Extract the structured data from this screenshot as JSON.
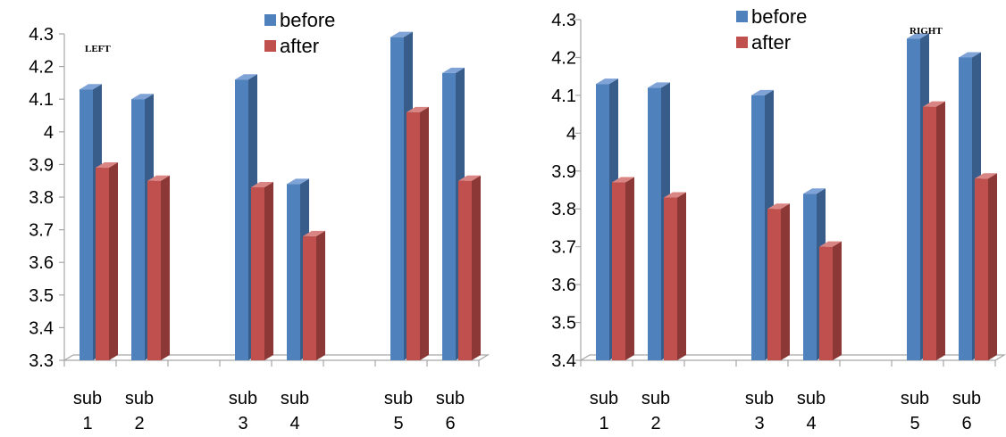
{
  "chart_data": [
    {
      "type": "bar",
      "title": "LEFT",
      "categories": [
        "sub 1",
        "sub 2",
        "sub 3",
        "sub 4",
        "sub 5",
        "sub 6"
      ],
      "category_lines": [
        [
          "sub",
          "1"
        ],
        [
          "sub",
          "2"
        ],
        [
          "sub",
          "3"
        ],
        [
          "sub",
          "4"
        ],
        [
          "sub",
          "5"
        ],
        [
          "sub",
          "6"
        ]
      ],
      "series": [
        {
          "name": "before",
          "values": [
            4.13,
            4.1,
            4.16,
            3.84,
            4.29,
            4.18
          ]
        },
        {
          "name": "after",
          "values": [
            3.89,
            3.85,
            3.83,
            3.68,
            4.06,
            3.85
          ]
        }
      ],
      "ylim": [
        3.3,
        4.3
      ],
      "yticks": [
        "3.3",
        "3.4",
        "3.5",
        "3.6",
        "3.7",
        "3.8",
        "3.9",
        "4",
        "4.1",
        "4.2",
        "4.3"
      ],
      "legend_position": "top",
      "grid": false,
      "style": "3d-bar"
    },
    {
      "type": "bar",
      "title": "RIGHT",
      "categories": [
        "sub 1",
        "sub 2",
        "sub 3",
        "sub 4",
        "sub 5",
        "sub 6"
      ],
      "category_lines": [
        [
          "sub",
          "1"
        ],
        [
          "sub",
          "2"
        ],
        [
          "sub",
          "3"
        ],
        [
          "sub",
          "4"
        ],
        [
          "sub",
          "5"
        ],
        [
          "sub",
          "6"
        ]
      ],
      "series": [
        {
          "name": "before",
          "values": [
            4.13,
            4.12,
            4.1,
            3.84,
            4.25,
            4.2
          ]
        },
        {
          "name": "after",
          "values": [
            3.87,
            3.83,
            3.8,
            3.7,
            4.07,
            3.88
          ]
        }
      ],
      "ylim": [
        3.4,
        4.3
      ],
      "yticks": [
        "3.4",
        "3.5",
        "3.6",
        "3.7",
        "3.8",
        "3.9",
        "4",
        "4.1",
        "4.2",
        "4.3"
      ],
      "legend_position": "top",
      "grid": false,
      "style": "3d-bar"
    }
  ],
  "colors": {
    "before": "#4F81BD",
    "before_side": "#385D8A",
    "before_top": "#7FA3D6",
    "after": "#C0504D",
    "after_side": "#8C3836",
    "after_top": "#D98583",
    "axis": "#A6A6A6"
  }
}
